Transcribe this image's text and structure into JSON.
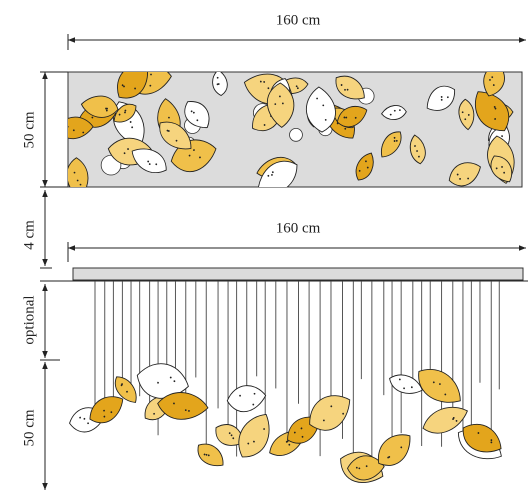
{
  "dimensions": {
    "top_width": "160 cm",
    "top_height": "50 cm",
    "gap": "4 cm",
    "canopy_width": "160 cm",
    "rods": "optional",
    "drop_height": "50 cm"
  }
}
